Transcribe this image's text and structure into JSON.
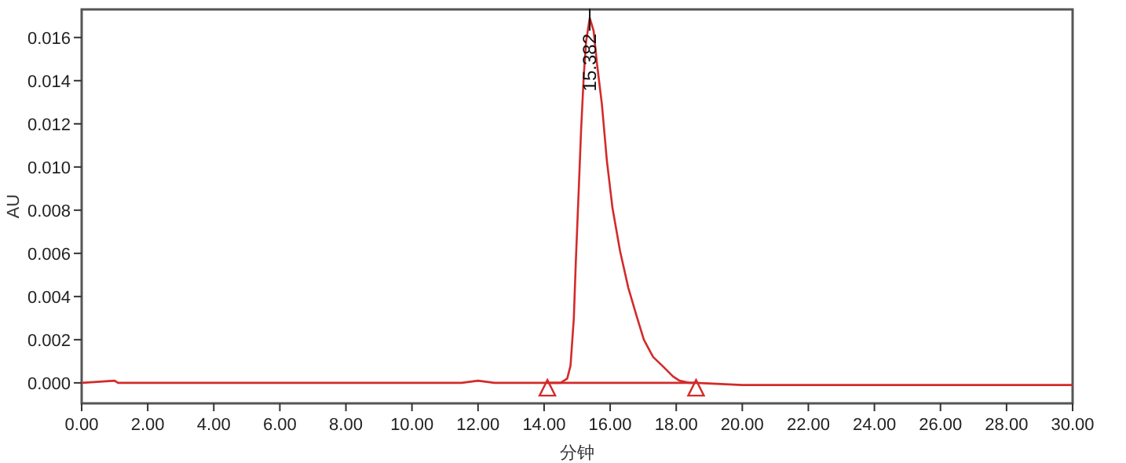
{
  "chart_data": {
    "type": "line",
    "xlabel": "分钟",
    "ylabel": "AU",
    "xlim": [
      0,
      30
    ],
    "ylim": [
      -0.00095,
      0.0173
    ],
    "xticks": [
      {
        "value": 0,
        "label": "0.00"
      },
      {
        "value": 2,
        "label": "2.00"
      },
      {
        "value": 4,
        "label": "4.00"
      },
      {
        "value": 6,
        "label": "6.00"
      },
      {
        "value": 8,
        "label": "8.00"
      },
      {
        "value": 10,
        "label": "10.00"
      },
      {
        "value": 12,
        "label": "12.00"
      },
      {
        "value": 14,
        "label": "14.00"
      },
      {
        "value": 16,
        "label": "16.00"
      },
      {
        "value": 18,
        "label": "18.00"
      },
      {
        "value": 20,
        "label": "20.00"
      },
      {
        "value": 22,
        "label": "22.00"
      },
      {
        "value": 24,
        "label": "24.00"
      },
      {
        "value": 26,
        "label": "26.00"
      },
      {
        "value": 28,
        "label": "28.00"
      },
      {
        "value": 30,
        "label": "30.00"
      }
    ],
    "yticks": [
      {
        "value": 0,
        "label": "0.000"
      },
      {
        "value": 0.002,
        "label": "0.002"
      },
      {
        "value": 0.004,
        "label": "0.004"
      },
      {
        "value": 0.006,
        "label": "0.006"
      },
      {
        "value": 0.008,
        "label": "0.008"
      },
      {
        "value": 0.01,
        "label": "0.010"
      },
      {
        "value": 0.012,
        "label": "0.012"
      },
      {
        "value": 0.014,
        "label": "0.014"
      },
      {
        "value": 0.016,
        "label": "0.016"
      }
    ],
    "grid": false,
    "series": [
      {
        "color": "#d42a2a",
        "x": [
          0,
          1,
          1.1,
          3,
          5,
          8,
          10,
          11.5,
          12,
          12.5,
          13,
          14,
          14.5,
          14.7,
          14.8,
          14.9,
          14.96,
          15.05,
          15.12,
          15.2,
          15.27,
          15.382,
          15.5,
          15.6,
          15.75,
          15.9,
          16.07,
          16.3,
          16.55,
          16.8,
          17.02,
          17.3,
          17.64,
          17.9,
          18.1,
          18.4,
          18.6,
          20,
          25,
          30
        ],
        "values": [
          0,
          0.0001,
          0,
          0,
          0,
          0,
          0,
          0,
          0.0001,
          0,
          0,
          0,
          0,
          0.0002,
          0.0008,
          0.003,
          0.0056,
          0.009,
          0.0117,
          0.0142,
          0.0158,
          0.0169,
          0.0163,
          0.0148,
          0.0129,
          0.0103,
          0.0081,
          0.0061,
          0.0044,
          0.0031,
          0.002,
          0.0012,
          0.0007,
          0.0003,
          0.0001,
          0,
          0,
          -0.0001,
          -0.0001,
          -0.0001
        ]
      },
      {
        "color": "#d42a2a",
        "x": [
          14.1,
          18.6
        ],
        "values": [
          0,
          0
        ]
      },
      {
        "type": "scatter",
        "marker": "triangle",
        "color": "#d42a2a",
        "x": [
          14.1,
          18.6
        ],
        "values": [
          -0.0003,
          -0.0003
        ]
      }
    ],
    "annotations": [
      {
        "text": "15.382",
        "x": 15.382,
        "y": 0.0169
      }
    ]
  }
}
